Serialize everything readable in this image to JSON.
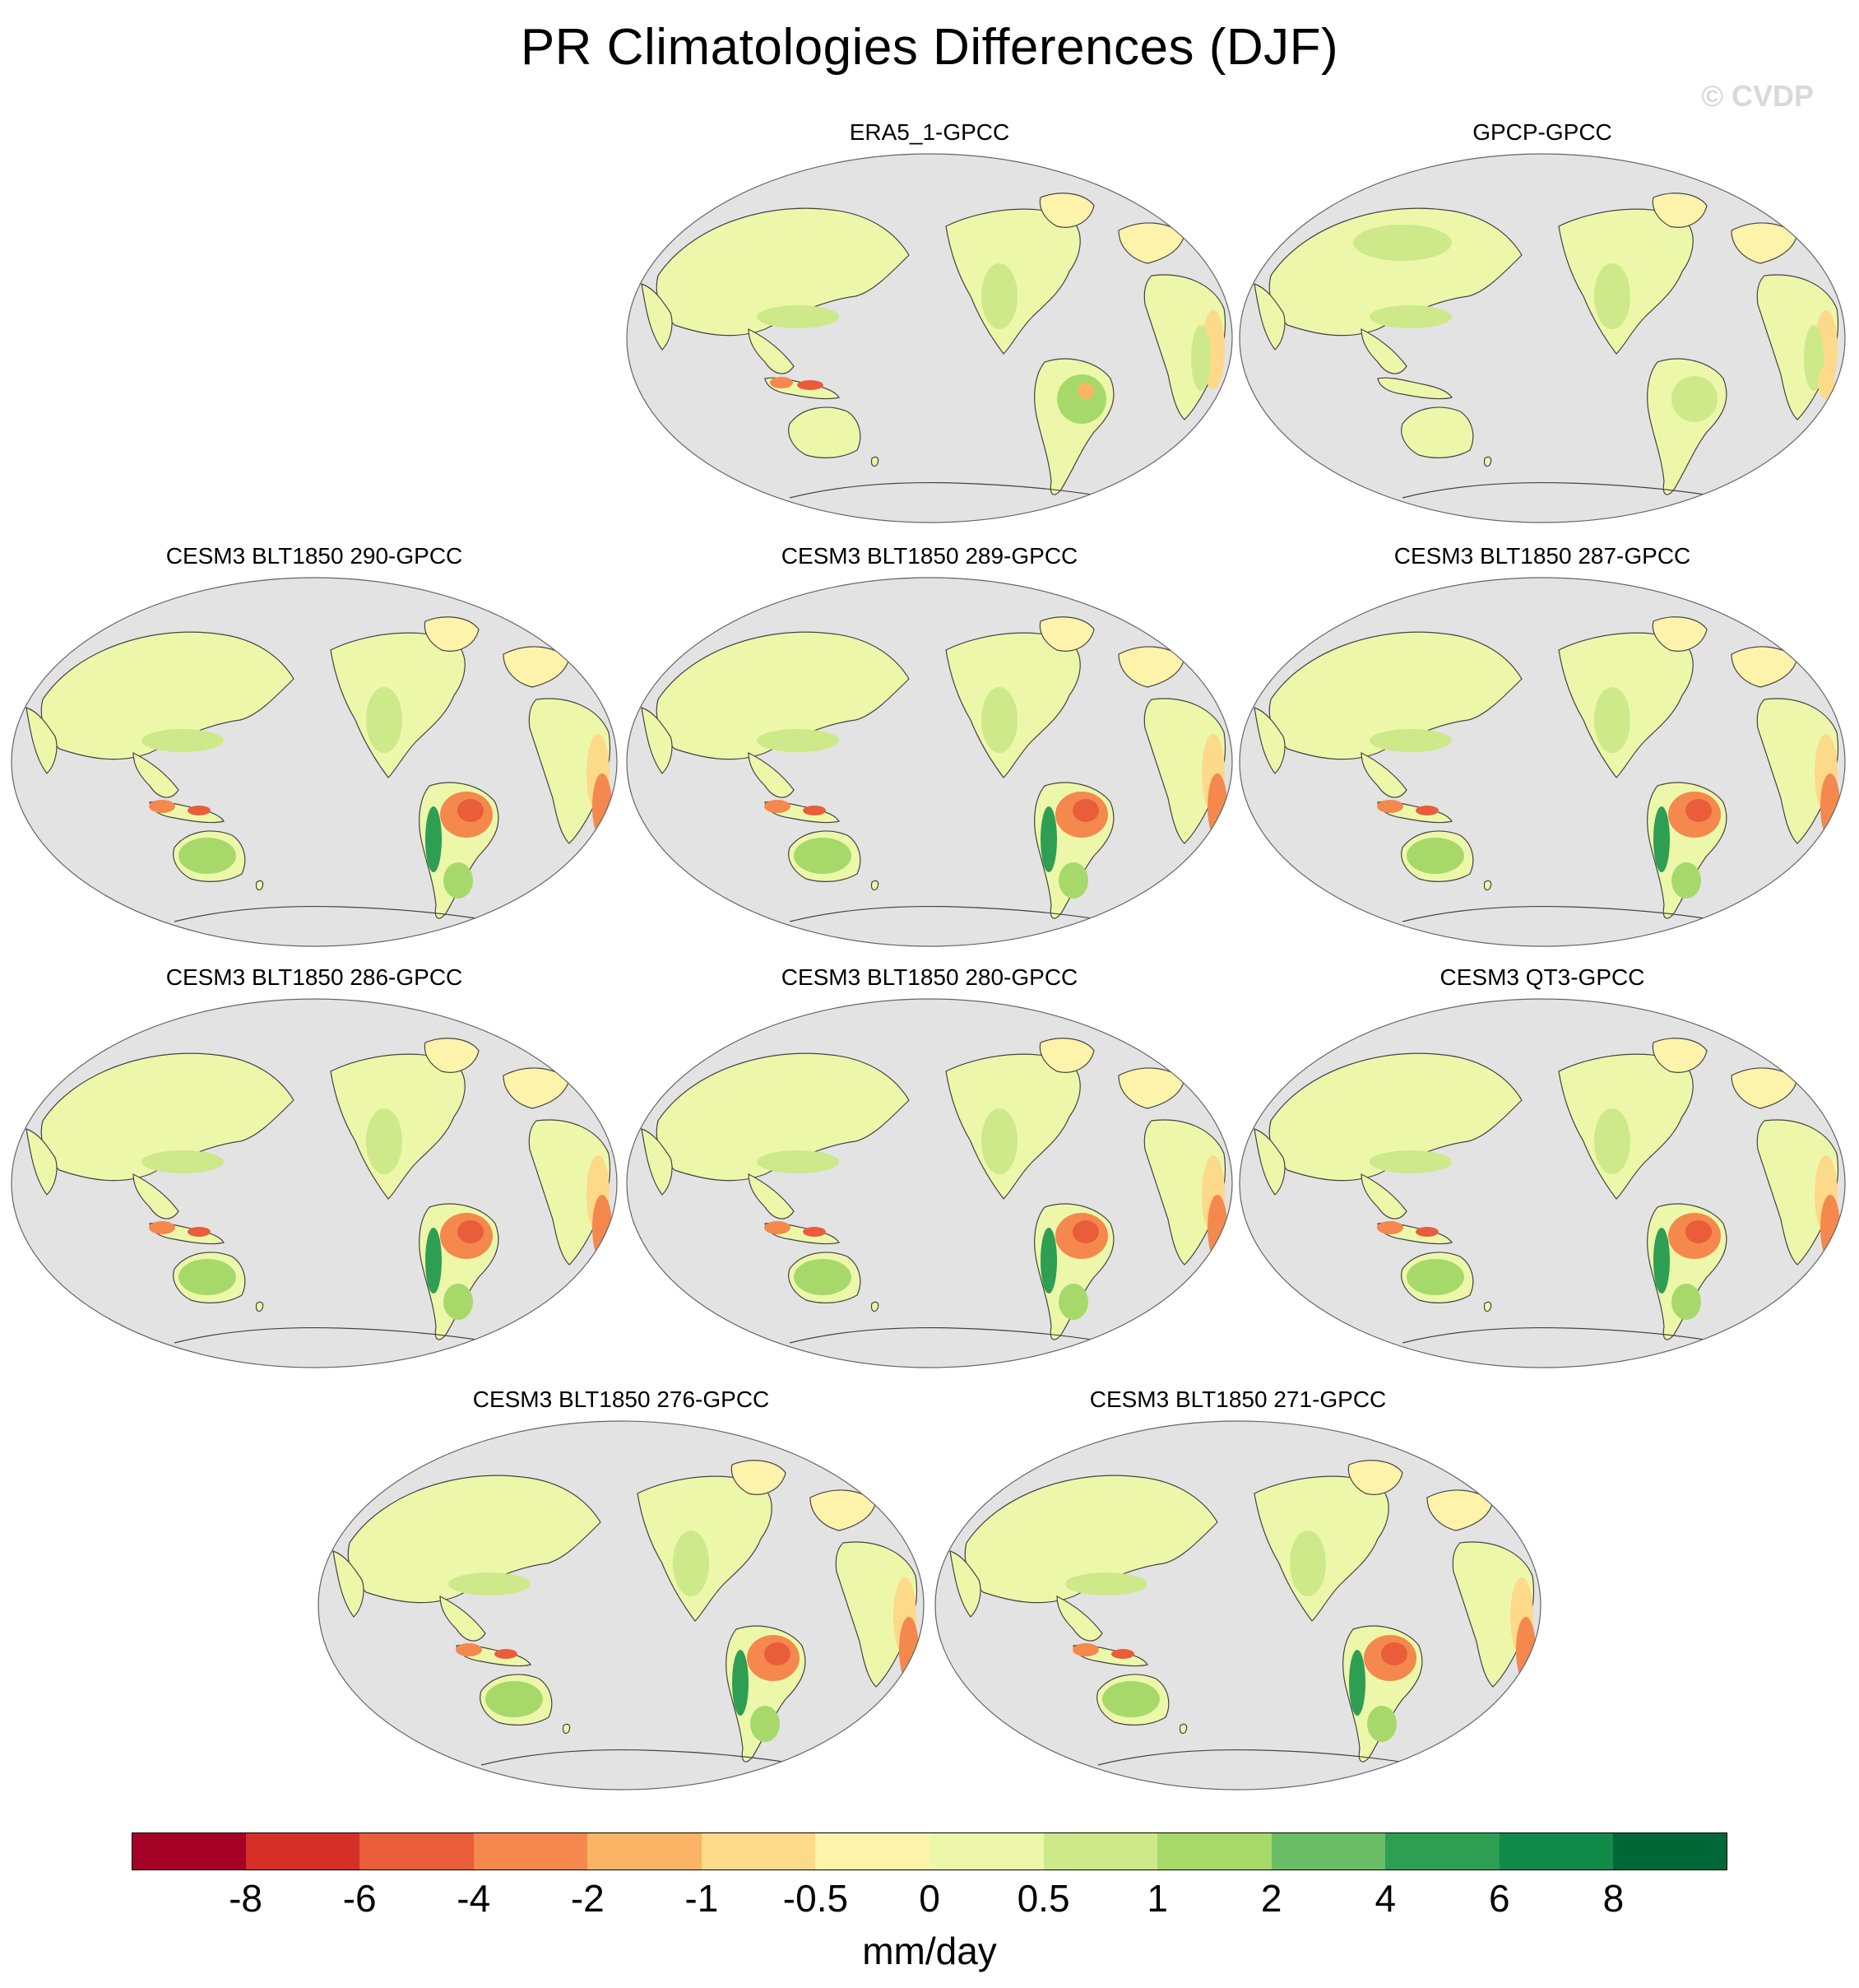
{
  "title": "PR Climatologies Differences (DJF)",
  "copyright": "© CVDP",
  "colors": {
    "ocean": "#e3e3e3",
    "outline": "#444444",
    "palette": [
      "#a50026",
      "#d62f27",
      "#e95d3b",
      "#f4884d",
      "#fbb465",
      "#fdd98a",
      "#fef3aa",
      "#edf7aa",
      "#cde98a",
      "#a6d96a",
      "#6abd63",
      "#2e9e53",
      "#128a49",
      "#006837"
    ]
  },
  "panels": [
    {
      "label": "ERA5_1-GPCC",
      "variant": "obs"
    },
    {
      "label": "GPCP-GPCC",
      "variant": "gpcp"
    },
    {
      "label": "CESM3 BLT1850 290-GPCC",
      "variant": "model"
    },
    {
      "label": "CESM3 BLT1850 289-GPCC",
      "variant": "model"
    },
    {
      "label": "CESM3 BLT1850 287-GPCC",
      "variant": "model"
    },
    {
      "label": "CESM3 BLT1850 286-GPCC",
      "variant": "model"
    },
    {
      "label": "CESM3 BLT1850 280-GPCC",
      "variant": "model"
    },
    {
      "label": "CESM3 QT3-GPCC",
      "variant": "model"
    },
    {
      "label": "CESM3 BLT1850 276-GPCC",
      "variant": "model"
    },
    {
      "label": "CESM3 BLT1850 271-GPCC",
      "variant": "model"
    }
  ],
  "colorbar": {
    "ticks": [
      "-8",
      "-6",
      "-4",
      "-2",
      "-1",
      "-0.5",
      "0",
      "0.5",
      "1",
      "2",
      "4",
      "6",
      "8"
    ],
    "units": "mm/day"
  }
}
